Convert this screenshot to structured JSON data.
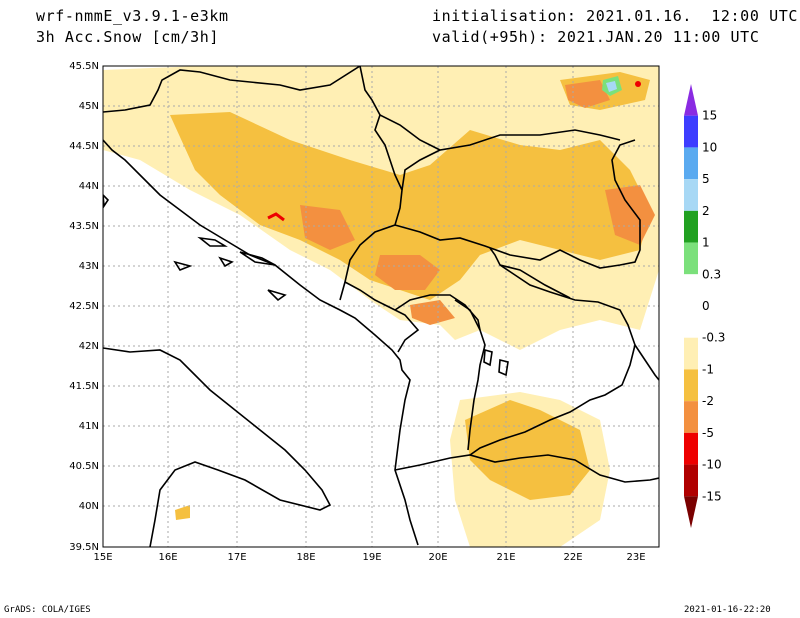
{
  "header": {
    "model": "wrf-nmmE_v3.9.1-e3km",
    "variable": "3h Acc.Snow [cm/3h]",
    "init": "initialisation: 2021.01.16.  12:00 UTC",
    "valid": "valid(+95h): 2021.JAN.20 11:00 UTC"
  },
  "footer": {
    "credit": "GrADS: COLA/IGES",
    "timestamp": "2021-01-16-22:20"
  },
  "map": {
    "lat_labels": [
      "45.5N",
      "45N",
      "44.5N",
      "44N",
      "43.5N",
      "43N",
      "42.5N",
      "42N",
      "41.5N",
      "41N",
      "40.5N",
      "40N",
      "39.5N"
    ],
    "lon_labels": [
      "15E",
      "16E",
      "17E",
      "18E",
      "19E",
      "20E",
      "21E",
      "22E",
      "23E"
    ],
    "colors": {
      "light": "#ffefb4",
      "medium": "#f5c040",
      "strong": "#f39040",
      "red": "#ee0000",
      "green": "#7be07b"
    }
  },
  "colorbar": {
    "labels": [
      "15",
      "10",
      "5",
      "2",
      "1",
      "0.3",
      "0",
      "-0.3",
      "-1",
      "-2",
      "-5",
      "-10",
      "-15"
    ],
    "colors": [
      "#8a2be2",
      "#3d3dff",
      "#5aaaf0",
      "#a7d8f5",
      "#21a121",
      "#7be07b",
      "#ffffff",
      "#ffffff",
      "#ffefb4",
      "#f5c040",
      "#f39040",
      "#ee0000",
      "#b00000",
      "#7a0000"
    ]
  }
}
